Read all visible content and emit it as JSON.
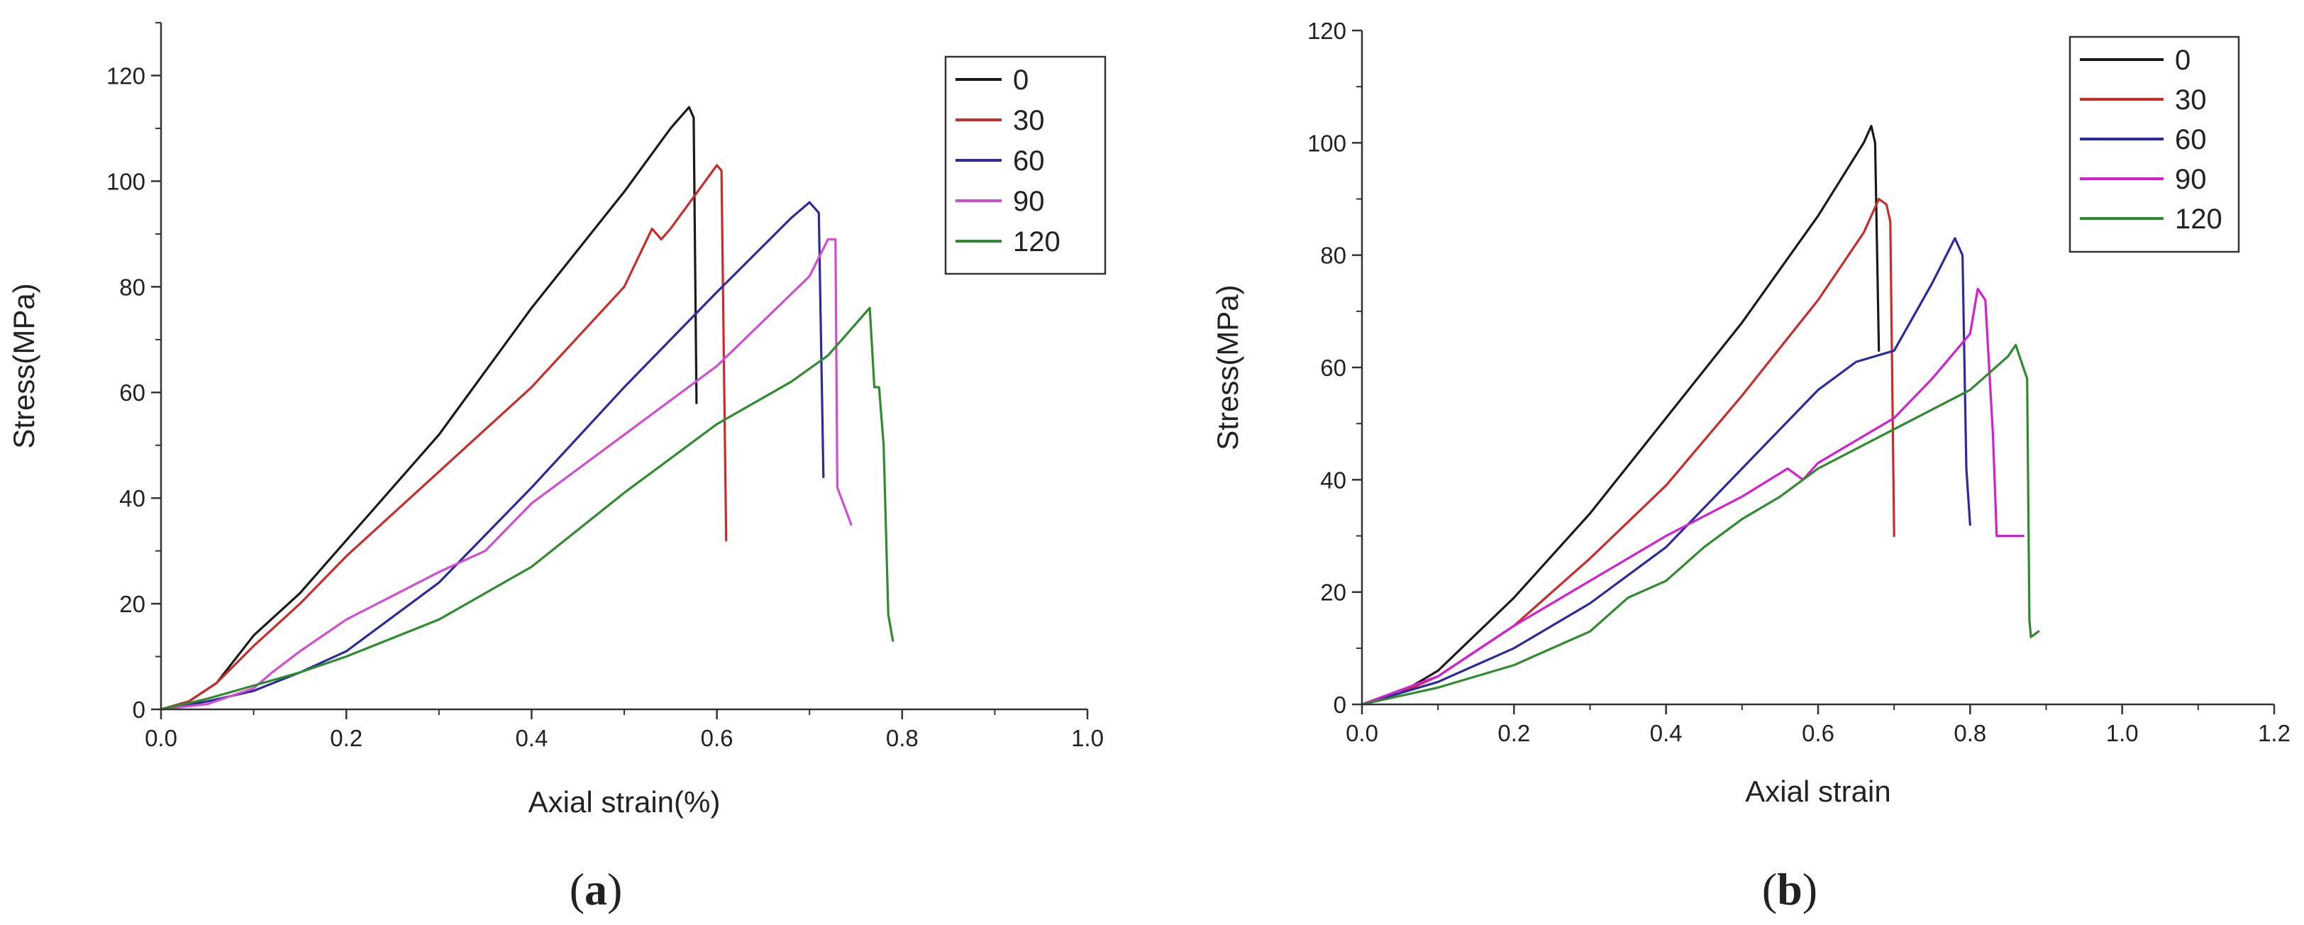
{
  "chart_data": [
    {
      "type": "line",
      "panel": "a",
      "caption_open": "(",
      "caption_letter": "a",
      "caption_close": ")",
      "xlabel": "Axial strain(%)",
      "ylabel": "Stress(MPa)",
      "xlim": [
        0,
        1.0
      ],
      "ylim": [
        0,
        130
      ],
      "xticks": [
        0.0,
        0.2,
        0.4,
        0.6,
        0.8,
        1.0
      ],
      "xtick_labels": [
        "0.0",
        "0.2",
        "0.4",
        "0.6",
        "0.8",
        "1.0"
      ],
      "yticks": [
        0,
        20,
        40,
        60,
        80,
        100,
        120
      ],
      "ytick_labels": [
        "0",
        "20",
        "40",
        "60",
        "80",
        "100",
        "120"
      ],
      "legend_position": "top-right",
      "series": [
        {
          "name": "0",
          "color": "#1a1a1a",
          "points": [
            [
              0,
              0
            ],
            [
              0.03,
              1.5
            ],
            [
              0.06,
              5
            ],
            [
              0.1,
              14
            ],
            [
              0.15,
              22
            ],
            [
              0.2,
              32
            ],
            [
              0.3,
              52
            ],
            [
              0.4,
              76
            ],
            [
              0.5,
              98
            ],
            [
              0.55,
              110
            ],
            [
              0.57,
              114
            ],
            [
              0.575,
              112
            ],
            [
              0.578,
              58
            ]
          ]
        },
        {
          "name": "30",
          "color": "#cc2b2b",
          "points": [
            [
              0,
              0
            ],
            [
              0.03,
              1.5
            ],
            [
              0.06,
              5
            ],
            [
              0.1,
              12
            ],
            [
              0.15,
              20
            ],
            [
              0.2,
              29
            ],
            [
              0.3,
              45
            ],
            [
              0.4,
              61
            ],
            [
              0.5,
              80
            ],
            [
              0.53,
              91
            ],
            [
              0.54,
              89
            ],
            [
              0.55,
              91
            ],
            [
              0.6,
              103
            ],
            [
              0.605,
              102
            ],
            [
              0.61,
              32
            ]
          ]
        },
        {
          "name": "60",
          "color": "#2b2b9e",
          "points": [
            [
              0,
              0
            ],
            [
              0.05,
              1.5
            ],
            [
              0.1,
              3.5
            ],
            [
              0.15,
              7
            ],
            [
              0.2,
              11
            ],
            [
              0.3,
              24
            ],
            [
              0.4,
              42
            ],
            [
              0.5,
              61
            ],
            [
              0.6,
              79
            ],
            [
              0.68,
              93
            ],
            [
              0.7,
              96
            ],
            [
              0.71,
              94
            ],
            [
              0.715,
              44
            ]
          ]
        },
        {
          "name": "90",
          "color": "#d24dd2",
          "points": [
            [
              0,
              0
            ],
            [
              0.05,
              1
            ],
            [
              0.1,
              4
            ],
            [
              0.12,
              7
            ],
            [
              0.15,
              11
            ],
            [
              0.2,
              17
            ],
            [
              0.3,
              26
            ],
            [
              0.35,
              30
            ],
            [
              0.4,
              39
            ],
            [
              0.5,
              52
            ],
            [
              0.6,
              65
            ],
            [
              0.7,
              82
            ],
            [
              0.72,
              89
            ],
            [
              0.728,
              89
            ],
            [
              0.73,
              42
            ],
            [
              0.745,
              35
            ]
          ]
        },
        {
          "name": "120",
          "color": "#2e8b2e",
          "points": [
            [
              0,
              0
            ],
            [
              0.05,
              2
            ],
            [
              0.1,
              4.5
            ],
            [
              0.15,
              7
            ],
            [
              0.2,
              10
            ],
            [
              0.3,
              17
            ],
            [
              0.4,
              27
            ],
            [
              0.5,
              41
            ],
            [
              0.6,
              54
            ],
            [
              0.68,
              62
            ],
            [
              0.72,
              67
            ],
            [
              0.765,
              76
            ],
            [
              0.77,
              61
            ],
            [
              0.775,
              61
            ],
            [
              0.78,
              50
            ],
            [
              0.785,
              18
            ],
            [
              0.79,
              13
            ]
          ]
        }
      ]
    },
    {
      "type": "line",
      "panel": "b",
      "caption_open": "(",
      "caption_letter": "b",
      "caption_close": ")",
      "xlabel": "Axial strain",
      "ylabel": "Stress(MPa)",
      "xlim": [
        0,
        1.2
      ],
      "ylim": [
        0,
        120
      ],
      "xticks": [
        0.0,
        0.2,
        0.4,
        0.6,
        0.8,
        1.0,
        1.2
      ],
      "xtick_labels": [
        "0.0",
        "0.2",
        "0.4",
        "0.6",
        "0.8",
        "1.0",
        "1.2"
      ],
      "yticks": [
        0,
        20,
        40,
        60,
        80,
        100,
        120
      ],
      "ytick_labels": [
        "0",
        "20",
        "40",
        "60",
        "80",
        "100",
        "120"
      ],
      "legend_position": "top-right",
      "series": [
        {
          "name": "0",
          "color": "#1a1a1a",
          "points": [
            [
              0,
              0
            ],
            [
              0.05,
              2
            ],
            [
              0.1,
              6
            ],
            [
              0.2,
              19
            ],
            [
              0.3,
              34
            ],
            [
              0.4,
              51
            ],
            [
              0.5,
              68
            ],
            [
              0.6,
              87
            ],
            [
              0.66,
              100
            ],
            [
              0.67,
              103
            ],
            [
              0.675,
              100
            ],
            [
              0.68,
              63
            ]
          ]
        },
        {
          "name": "30",
          "color": "#cc2b2b",
          "points": [
            [
              0,
              0
            ],
            [
              0.05,
              2
            ],
            [
              0.1,
              5
            ],
            [
              0.2,
              14
            ],
            [
              0.3,
              26
            ],
            [
              0.4,
              39
            ],
            [
              0.5,
              55
            ],
            [
              0.6,
              72
            ],
            [
              0.66,
              84
            ],
            [
              0.68,
              90
            ],
            [
              0.69,
              89
            ],
            [
              0.695,
              86
            ],
            [
              0.7,
              30
            ]
          ]
        },
        {
          "name": "60",
          "color": "#2b2b9e",
          "points": [
            [
              0,
              0
            ],
            [
              0.1,
              4
            ],
            [
              0.2,
              10
            ],
            [
              0.3,
              18
            ],
            [
              0.4,
              28
            ],
            [
              0.5,
              42
            ],
            [
              0.6,
              56
            ],
            [
              0.65,
              61
            ],
            [
              0.7,
              63
            ],
            [
              0.75,
              75
            ],
            [
              0.78,
              83
            ],
            [
              0.79,
              80
            ],
            [
              0.795,
              42
            ],
            [
              0.8,
              32
            ]
          ]
        },
        {
          "name": "90",
          "color": "#d21fd2",
          "points": [
            [
              0,
              0
            ],
            [
              0.1,
              5
            ],
            [
              0.2,
              14
            ],
            [
              0.3,
              22
            ],
            [
              0.4,
              30
            ],
            [
              0.5,
              37
            ],
            [
              0.56,
              42
            ],
            [
              0.58,
              40
            ],
            [
              0.6,
              43
            ],
            [
              0.7,
              51
            ],
            [
              0.75,
              58
            ],
            [
              0.8,
              66
            ],
            [
              0.81,
              74
            ],
            [
              0.82,
              72
            ],
            [
              0.83,
              48
            ],
            [
              0.835,
              30
            ],
            [
              0.87,
              30
            ]
          ]
        },
        {
          "name": "120",
          "color": "#2e8b2e",
          "points": [
            [
              0,
              0
            ],
            [
              0.1,
              3
            ],
            [
              0.2,
              7
            ],
            [
              0.3,
              13
            ],
            [
              0.35,
              19
            ],
            [
              0.4,
              22
            ],
            [
              0.45,
              28
            ],
            [
              0.5,
              33
            ],
            [
              0.55,
              37
            ],
            [
              0.6,
              42
            ],
            [
              0.7,
              49
            ],
            [
              0.8,
              56
            ],
            [
              0.85,
              62
            ],
            [
              0.86,
              64
            ],
            [
              0.87,
              60
            ],
            [
              0.875,
              58
            ],
            [
              0.878,
              15
            ],
            [
              0.88,
              12
            ],
            [
              0.89,
              13
            ]
          ]
        }
      ]
    }
  ]
}
